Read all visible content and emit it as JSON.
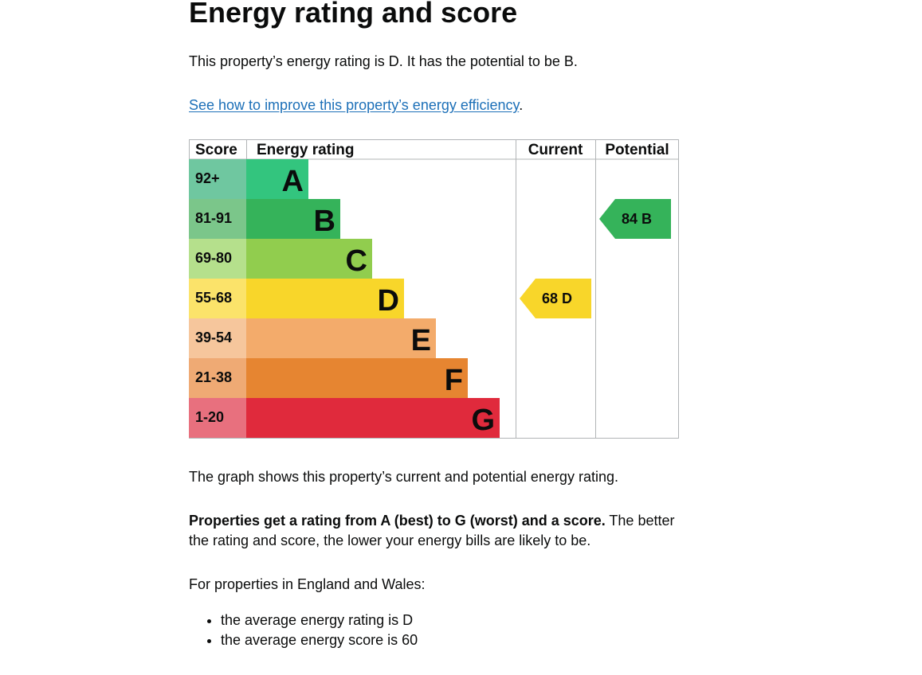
{
  "page": {
    "title": "Energy rating and score",
    "intro": "This property’s energy rating is D. It has the potential to be B.",
    "improve_link": "See how to improve this property’s energy efficiency",
    "improve_link_suffix": ".",
    "graph_caption": "The graph shows this property’s current and potential energy rating.",
    "rating_explainer_bold": "Properties get a rating from A (best) to G (worst) and a score.",
    "rating_explainer_rest_line1": " The better",
    "rating_explainer_line2": "the rating and score, the lower your energy bills are likely to be.",
    "england_wales_intro": "For properties in England and Wales:",
    "bullets": [
      "the average energy rating is D",
      "the average energy score is 60"
    ]
  },
  "chart_data": {
    "type": "table",
    "headers": [
      "Score",
      "Energy rating",
      "Current",
      "Potential"
    ],
    "bands": [
      {
        "score": "92+",
        "letter": "A",
        "color": "#33c57e",
        "score_color": "#6fc7a0"
      },
      {
        "score": "81-91",
        "letter": "B",
        "color": "#35b35a",
        "score_color": "#7bc68a"
      },
      {
        "score": "69-80",
        "letter": "C",
        "color": "#91cd4e",
        "score_color": "#b5e08c"
      },
      {
        "score": "55-68",
        "letter": "D",
        "color": "#f8d62a",
        "score_color": "#fbe36a"
      },
      {
        "score": "39-54",
        "letter": "E",
        "color": "#f3ab6b",
        "score_color": "#f6c69c"
      },
      {
        "score": "21-38",
        "letter": "F",
        "color": "#e68531",
        "score_color": "#efaa74"
      },
      {
        "score": "1-20",
        "letter": "G",
        "color": "#e02a3c",
        "score_color": "#e8707e"
      }
    ],
    "current": {
      "score": 68,
      "letter": "D",
      "label": "68  D",
      "color": "#f8d62a"
    },
    "potential": {
      "score": 84,
      "letter": "B",
      "label": "84  B",
      "color": "#35b35a"
    }
  }
}
